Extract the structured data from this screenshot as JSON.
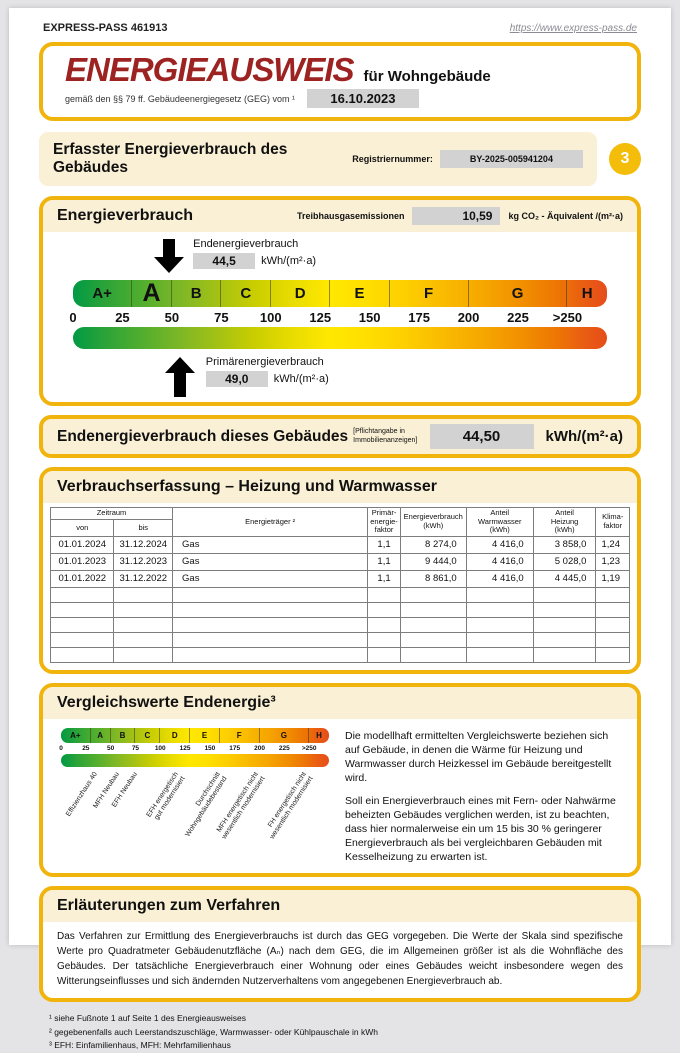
{
  "header": {
    "doc_ref": "EXPRESS-PASS 461913",
    "url": "https://www.express-pass.de"
  },
  "title_box": {
    "title": "ENERGIEAUSWEIS",
    "subtitle": "für Wohngebäude",
    "law": "gemäß den §§ 79 ff. Gebäudeenergiegesetz (GEG) vom ¹",
    "date": "16.10.2023"
  },
  "section_band": {
    "title": "Erfasster Energieverbrauch des Gebäudes",
    "reg_label": "Registriernummer:",
    "reg_value": "BY-2025-005941204",
    "page_badge": "3"
  },
  "consumption_box": {
    "title": "Energieverbrauch",
    "ghg_label": "Treibhausgasemissionen",
    "ghg_value": "10,59",
    "ghg_unit": "kg CO₂ - Äquivalent /(m²·a)"
  },
  "scale": {
    "segments": [
      {
        "letter": "A+",
        "width": 11.1
      },
      {
        "letter": "A",
        "width": 7.4,
        "current": true
      },
      {
        "letter": "B",
        "width": 9.3
      },
      {
        "letter": "C",
        "width": 9.3
      },
      {
        "letter": "D",
        "width": 11.1
      },
      {
        "letter": "E",
        "width": 11.1
      },
      {
        "letter": "F",
        "width": 14.8
      },
      {
        "letter": "G",
        "width": 18.5
      },
      {
        "letter": "H",
        "width": 7.4
      }
    ],
    "ticks": [
      "0",
      "25",
      "50",
      "75",
      "100",
      "125",
      "150",
      "175",
      "200",
      "225",
      ">250"
    ],
    "end_energy": {
      "label": "Endenergieverbrauch",
      "value": "44,5",
      "unit": "kWh/(m²·a)",
      "pos_pct": 18
    },
    "primary_energy": {
      "label": "Primärenergieverbrauch",
      "value": "49,0",
      "unit": "kWh/(m²·a)",
      "pos_pct": 20
    }
  },
  "final_band": {
    "title": "Endenergieverbrauch dieses Gebäudes",
    "note": [
      "[Pflichtangabe in",
      "Immobilienanzeigen]"
    ],
    "value": "44,50",
    "unit": "kWh/(m²·a)"
  },
  "usage_table": {
    "title": "Verbrauchserfassung – Heizung und Warmwasser",
    "col_group_label": "Zeitraum",
    "headers": [
      "von",
      "bis",
      "Energieträger ²",
      "Primär-\nenergie-\nfaktor",
      "Energieverbrauch\n(kWh)",
      "Anteil\nWarmwasser\n(kWh)",
      "Anteil\nHeizung\n(kWh)",
      "Klima-\nfaktor"
    ],
    "rows": [
      [
        "01.01.2024",
        "31.12.2024",
        "Gas",
        "1,1",
        "8 274,0",
        "4 416,0",
        "3 858,0",
        "1,24"
      ],
      [
        "01.01.2023",
        "31.12.2023",
        "Gas",
        "1,1",
        "9 444,0",
        "4 416,0",
        "5 028,0",
        "1,23"
      ],
      [
        "01.01.2022",
        "31.12.2022",
        "Gas",
        "1,1",
        "8 861,0",
        "4 416,0",
        "4 445,0",
        "1,19"
      ]
    ],
    "empty_rows": 5
  },
  "comparison": {
    "title": "Vergleichswerte Endenergie³",
    "labels": [
      {
        "text": "Effizienzhaus 40",
        "pos_pct": 12
      },
      {
        "text": "MFH Neubau",
        "pos_pct": 20
      },
      {
        "text": "EFH Neubau",
        "pos_pct": 27
      },
      {
        "text": "EFH energetisch\ngut modernisiert",
        "pos_pct": 42
      },
      {
        "text": "Durchschnitt\nWohngebäudebestand",
        "pos_pct": 58
      },
      {
        "text": "MFH energetisch nicht\nwesentlich modernisiert",
        "pos_pct": 72
      },
      {
        "text": "FH energetisch nicht\nwesentlich modernisiert",
        "pos_pct": 90
      }
    ],
    "paragraphs": [
      "Die modellhaft ermittelten Vergleichswerte beziehen sich auf Gebäude, in denen die Wärme für Heizung und Warmwasser durch Heizkessel im Gebäude bereitgestellt wird.",
      "Soll ein Energieverbrauch eines mit Fern- oder Nahwärme beheizten Gebäudes verglichen werden, ist zu beachten, dass hier normalerweise ein um 15 bis 30 % geringerer Energieverbrauch als bei vergleichbaren Gebäuden mit Kesselheizung zu erwarten ist."
    ]
  },
  "explanations": {
    "title": "Erläuterungen zum Verfahren",
    "text": "Das Verfahren zur Ermittlung des Energieverbrauchs ist durch das GEG vorgegeben. Die Werte der Skala sind spezifische Werte pro Quadratmeter Gebäudenutzfläche (Aₙ) nach dem GEG, die im Allgemeinen größer ist als die Wohnfläche des Gebäudes. Der tatsächliche Energieverbrauch einer Wohnung oder eines Gebäudes weicht insbesondere wegen des Witterungseinflusses und sich ändernden Nutzerverhaltens vom angegebenen Energieverbrauch ab.",
    "footnotes": [
      "¹ siehe Fußnote 1 auf Seite 1 des Energieausweises",
      "² gegebenenfalls auch Leerstandszuschläge, Warmwasser- oder Kühlpauschale in kWh",
      "³ EFH: Einfamilienhaus, MFH: Mehrfamilienhaus"
    ]
  },
  "colors": {
    "border_yellow": "#f0b40c",
    "band_cream": "#faf0d5",
    "value_gray": "#d2d2d2",
    "title_red": "#9c2321",
    "badge_yellow": "#f4bd0a"
  }
}
